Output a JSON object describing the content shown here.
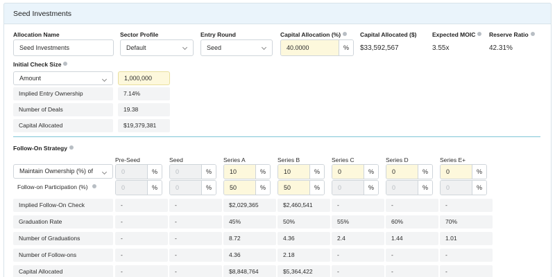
{
  "panel": {
    "title": "Seed Investments"
  },
  "top_labels": {
    "allocation_name": "Allocation Name",
    "sector_profile": "Sector Profile",
    "entry_round": "Entry Round",
    "capital_allocation_pct": "Capital Allocation (%)",
    "capital_allocated_dollars": "Capital Allocated ($)",
    "expected_moic": "Expected MOIC",
    "reserve_ratio": "Reserve Ratio"
  },
  "top_values": {
    "allocation_name": "Seed Investments",
    "sector_profile": "Default",
    "entry_round": "Seed",
    "capital_allocation_pct": "40.0000",
    "capital_allocation_unit": "%",
    "capital_allocated_dollars": "$33,592,567",
    "expected_moic": "3.55x",
    "reserve_ratio": "42.31%"
  },
  "initial_check": {
    "title": "Initial Check Size",
    "type": "Amount",
    "amount": "1,000,000",
    "rows": [
      {
        "label": "Implied Entry Ownership",
        "value": "7.14%"
      },
      {
        "label": "Number of Deals",
        "value": "19.38"
      },
      {
        "label": "Capital Allocated",
        "value": "$19,379,381"
      }
    ]
  },
  "follow_on": {
    "title": "Follow-On Strategy",
    "columns": [
      "Pre-Seed",
      "Seed",
      "Series A",
      "Series B",
      "Series C",
      "Series D",
      "Series E+"
    ],
    "strategy_select": "Maintain Ownership (%) of",
    "maintain": [
      "0",
      "0",
      "10",
      "10",
      "0",
      "0",
      "0"
    ],
    "participation_label": "Follow-on Participation (%)",
    "participation": [
      "0",
      "0",
      "50",
      "50",
      "0",
      "0",
      "0"
    ],
    "unit": "%",
    "rows": [
      {
        "label": "Implied Follow-On Check",
        "values": [
          "-",
          "-",
          "$2,029,365",
          "$2,460,541",
          "-",
          "-",
          "-"
        ]
      },
      {
        "label": "Graduation Rate",
        "values": [
          "-",
          "-",
          "45%",
          "50%",
          "55%",
          "60%",
          "70%"
        ]
      },
      {
        "label": "Number of Graduations",
        "values": [
          "-",
          "-",
          "8.72",
          "4.36",
          "2.4",
          "1.44",
          "1.01"
        ]
      },
      {
        "label": "Number of Follow-ons",
        "values": [
          "-",
          "-",
          "4.36",
          "2.18",
          "-",
          "-",
          "-"
        ]
      },
      {
        "label": "Capital Allocated",
        "values": [
          "-",
          "-",
          "$8,848,764",
          "$5,364,422",
          "-",
          "-",
          "-"
        ]
      }
    ]
  },
  "colors": {
    "header_bg": "#eaf4fb",
    "input_highlight": "#fdf8dc",
    "divider": "#7fc6d6",
    "cell_bg": "#f3f4f5"
  }
}
